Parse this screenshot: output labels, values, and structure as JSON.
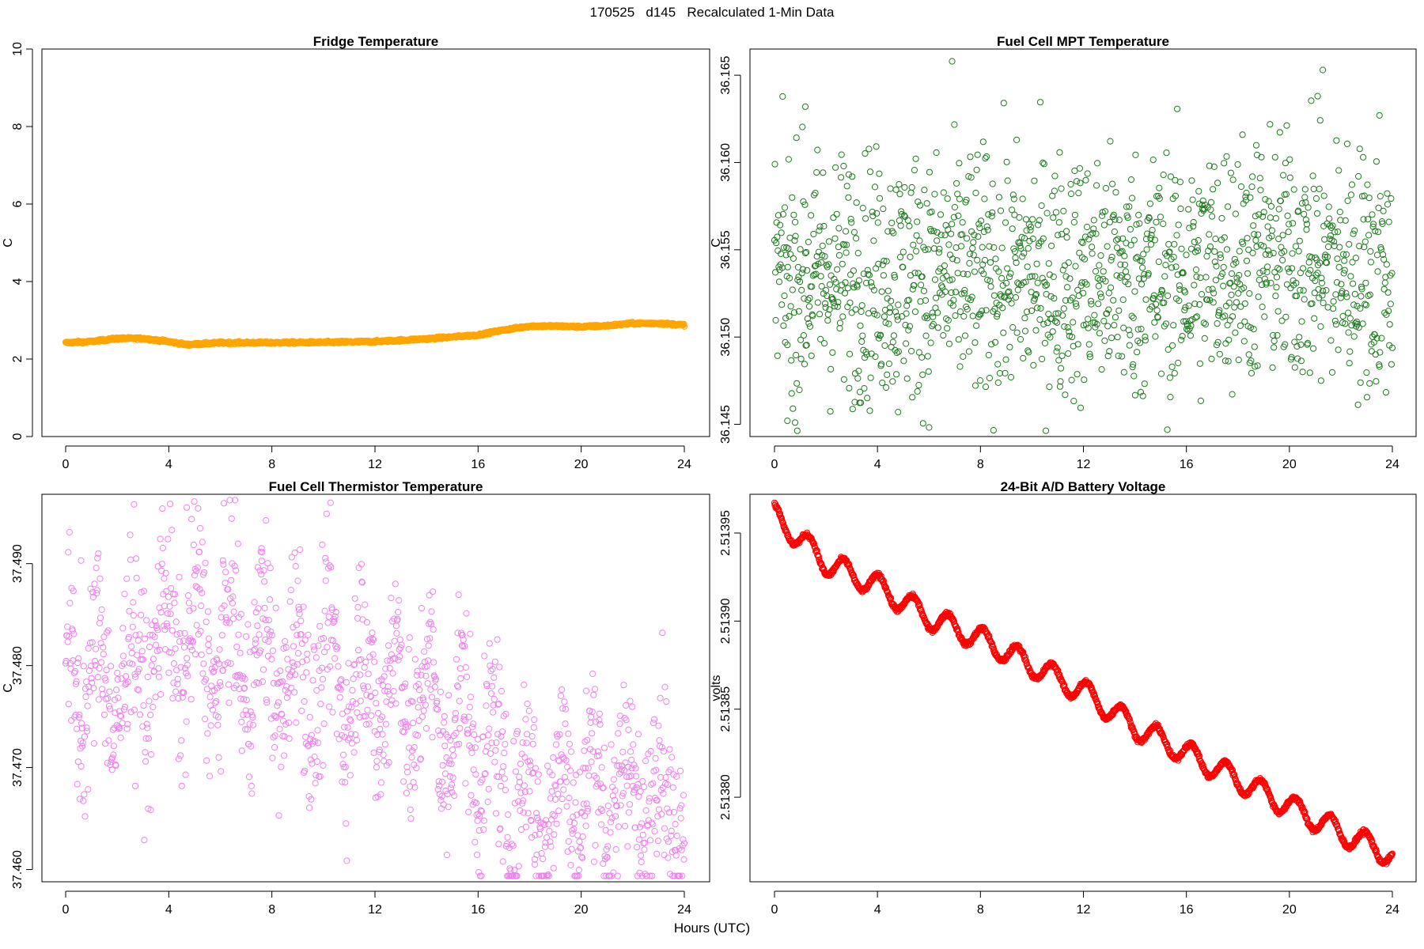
{
  "figure": {
    "title": "170525   d145   Recalculated 1-Min Data",
    "xlabel": "Hours (UTC)"
  },
  "chart_data": [
    {
      "type": "scatter",
      "title": "Fridge Temperature",
      "xlabel": "Hours (UTC)",
      "ylabel": "C",
      "color": "#FFA500",
      "xlim": [
        0,
        24
      ],
      "ylim": [
        0,
        10
      ],
      "xticks": [
        0,
        4,
        8,
        12,
        16,
        20,
        24
      ],
      "yticks": [
        0,
        2,
        4,
        6,
        8,
        10
      ],
      "ytick_labels": [
        "0",
        "2",
        "4",
        "6",
        "8",
        "10"
      ],
      "series_profile": {
        "x": [
          0,
          1,
          2,
          3,
          4,
          4.7,
          6,
          8,
          10,
          12,
          14,
          16,
          17,
          18,
          19,
          20,
          21,
          22,
          23,
          24
        ],
        "y": [
          2.42,
          2.45,
          2.53,
          2.53,
          2.45,
          2.37,
          2.42,
          2.42,
          2.43,
          2.45,
          2.52,
          2.62,
          2.75,
          2.85,
          2.85,
          2.83,
          2.86,
          2.92,
          2.92,
          2.88
        ]
      },
      "noise": 0.015,
      "n_points": 1440
    },
    {
      "type": "scatter",
      "title": "Fuel Cell MPT Temperature",
      "xlabel": "Hours (UTC)",
      "ylabel": "C",
      "color": "#1E7B1E",
      "xlim": [
        0,
        24
      ],
      "ylim": [
        36.1443,
        36.1665
      ],
      "xticks": [
        0,
        4,
        8,
        12,
        16,
        20,
        24
      ],
      "yticks": [
        36.145,
        36.15,
        36.155,
        36.16,
        36.165
      ],
      "ytick_labels": [
        "36.145",
        "36.150",
        "36.155",
        "36.160",
        "36.165"
      ],
      "series_profile": {
        "x": [
          0,
          6,
          12,
          16,
          18,
          20,
          24
        ],
        "y": [
          36.1535,
          36.1535,
          36.1535,
          36.1535,
          36.1545,
          36.1545,
          36.1535
        ]
      },
      "noise": 0.0035,
      "n_points": 1440,
      "sample_every": 1,
      "outliers": [
        {
          "x": 6.9,
          "y": 36.1658
        },
        {
          "x": 21.3,
          "y": 36.1653
        },
        {
          "x": 21.1,
          "y": 36.1638
        },
        {
          "x": 1.2,
          "y": 36.1632
        },
        {
          "x": 23.5,
          "y": 36.1627
        },
        {
          "x": 0.5,
          "y": 36.1452
        },
        {
          "x": 0.8,
          "y": 36.1451
        },
        {
          "x": 4.8,
          "y": 36.1457
        }
      ]
    },
    {
      "type": "scatter",
      "title": "Fuel Cell Thermistor Temperature",
      "xlabel": "Hours (UTC)",
      "ylabel": "C",
      "color": "#EE82EE",
      "xlim": [
        0,
        24
      ],
      "ylim": [
        37.4588,
        37.4968
      ],
      "xticks": [
        0,
        4,
        8,
        12,
        16,
        20,
        24
      ],
      "yticks": [
        37.46,
        37.47,
        37.48,
        37.49
      ],
      "ytick_labels": [
        "37.460",
        "37.470",
        "37.480",
        "37.490"
      ],
      "series_profile": {
        "x": [
          0,
          2,
          4,
          5,
          7,
          9,
          12,
          13.5,
          15,
          16,
          17,
          18,
          20,
          22,
          24
        ],
        "y": [
          37.479,
          37.478,
          37.483,
          37.482,
          37.481,
          37.479,
          37.478,
          37.477,
          37.474,
          37.473,
          37.468,
          37.466,
          37.468,
          37.467,
          37.468
        ]
      },
      "noise": 0.0045,
      "osc_amp": 0.0055,
      "osc_period": 1.28,
      "n_points": 1440,
      "sample_every": 1,
      "outliers": [
        {
          "x": 4.7,
          "y": 37.4955
        },
        {
          "x": 7.6,
          "y": 37.4915
        },
        {
          "x": 0.6,
          "y": 37.4903
        },
        {
          "x": 6.1,
          "y": 37.4903
        },
        {
          "x": 18.2,
          "y": 37.4605
        },
        {
          "x": 2.7,
          "y": 37.4682
        },
        {
          "x": 16.8,
          "y": 37.4625
        }
      ]
    },
    {
      "type": "scatter",
      "title": "24-Bit A/D Battery Voltage",
      "xlabel": "Hours (UTC)",
      "ylabel": "volts",
      "color": "#FF0000",
      "xlim": [
        0,
        24
      ],
      "ylim": [
        2.513752,
        2.513972
      ],
      "xticks": [
        0,
        4,
        8,
        12,
        16,
        20,
        24
      ],
      "yticks": [
        2.5138,
        2.51385,
        2.5139,
        2.51395
      ],
      "ytick_labels": [
        "2.51380",
        "2.51385",
        "2.51390",
        "2.51395"
      ],
      "series_profile": {
        "x": [
          0,
          2,
          4,
          6,
          8,
          10,
          12,
          14,
          16,
          18,
          20,
          22,
          24
        ],
        "y": [
          2.51396,
          2.513933,
          2.51392,
          2.513902,
          2.51389,
          2.513875,
          2.51386,
          2.51384,
          2.513825,
          2.51381,
          2.513795,
          2.51378,
          2.513767
        ]
      },
      "osc_amp": 6.5e-06,
      "osc_period": 1.35,
      "noise": 6e-07,
      "n_points": 1440
    }
  ]
}
